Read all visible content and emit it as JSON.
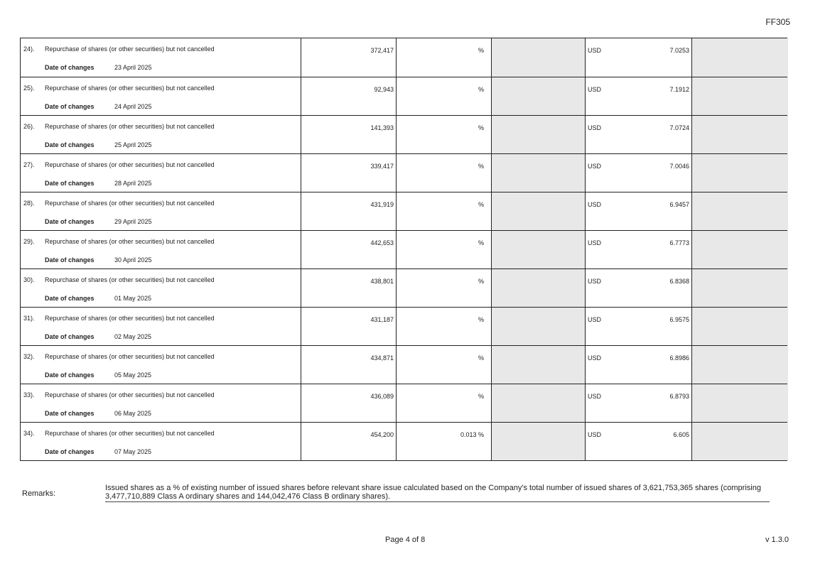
{
  "header": {
    "form_code": "FF305"
  },
  "table": {
    "date_label": "Date of changes",
    "currency": "USD",
    "rows": [
      {
        "no": "24).",
        "description": "Repurchase of shares (or other securities) but not cancelled",
        "date": "23 April 2025",
        "shares": "372,417",
        "percent": "",
        "price": "7.0253"
      },
      {
        "no": "25).",
        "description": "Repurchase of shares (or other securities) but not cancelled",
        "date": "24 April 2025",
        "shares": "92,943",
        "percent": "",
        "price": "7.1912"
      },
      {
        "no": "26).",
        "description": "Repurchase of shares (or other securities) but not cancelled",
        "date": "25 April 2025",
        "shares": "141,393",
        "percent": "",
        "price": "7.0724"
      },
      {
        "no": "27).",
        "description": "Repurchase of shares (or other securities) but not cancelled",
        "date": "28 April 2025",
        "shares": "339,417",
        "percent": "",
        "price": "7.0046"
      },
      {
        "no": "28).",
        "description": "Repurchase of shares (or other securities) but not cancelled",
        "date": "29 April 2025",
        "shares": "431,919",
        "percent": "",
        "price": "6.9457"
      },
      {
        "no": "29).",
        "description": "Repurchase of shares (or other securities) but not cancelled",
        "date": "30 April 2025",
        "shares": "442,653",
        "percent": "",
        "price": "6.7773"
      },
      {
        "no": "30).",
        "description": "Repurchase of shares (or other securities) but not cancelled",
        "date": "01 May 2025",
        "shares": "438,801",
        "percent": "",
        "price": "6.8368"
      },
      {
        "no": "31).",
        "description": "Repurchase of shares (or other securities) but not cancelled",
        "date": "02 May 2025",
        "shares": "431,187",
        "percent": "",
        "price": "6.9575"
      },
      {
        "no": "32).",
        "description": "Repurchase of shares (or other securities) but not cancelled",
        "date": "05 May 2025",
        "shares": "434,871",
        "percent": "",
        "price": "6.8986"
      },
      {
        "no": "33).",
        "description": "Repurchase of shares (or other securities) but not cancelled",
        "date": "06 May 2025",
        "shares": "436,089",
        "percent": "",
        "price": "6.8793"
      },
      {
        "no": "34).",
        "description": "Repurchase of shares (or other securities) but not cancelled",
        "date": "07 May 2025",
        "shares": "454,200",
        "percent": "0.013",
        "price": "6.605"
      }
    ]
  },
  "remarks": {
    "label": "Remarks:",
    "text": "Issued shares as a % of existing number of issued shares before relevant share issue calculated based on the Company's total number of issued shares of 3,621,753,365 shares (comprising 3,477,710,889 Class A ordinary shares and 144,042,476 Class B ordinary shares)."
  },
  "footer": {
    "page": "Page 4 of 8",
    "version": "v 1.3.0"
  }
}
